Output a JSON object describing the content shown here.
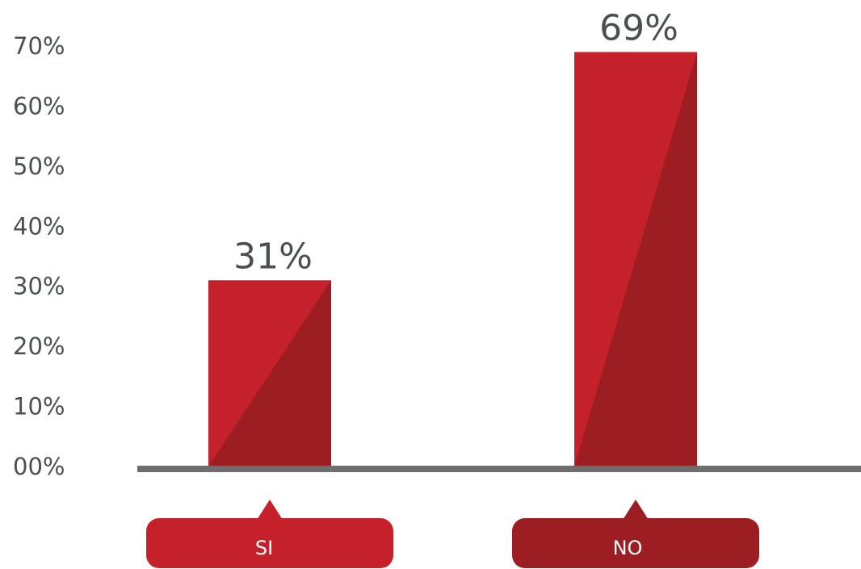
{
  "chart_data": {
    "type": "bar",
    "categories": [
      "SI",
      "NO"
    ],
    "values": [
      31,
      69
    ],
    "data_labels": [
      "31%",
      "69%"
    ],
    "ylim": [
      0,
      70
    ],
    "y_ticks": [
      "00%",
      "10%",
      "20%",
      "30%",
      "40%",
      "50%",
      "60%",
      "70%"
    ],
    "grid": false,
    "legend": "none",
    "colors": {
      "bar": "#c5212a",
      "bar_shade": "#9c1e22",
      "category_tags": [
        "#c5212a",
        "#9c1e22"
      ],
      "axis": "#6e6e6e",
      "text": "#4a4f54"
    }
  }
}
